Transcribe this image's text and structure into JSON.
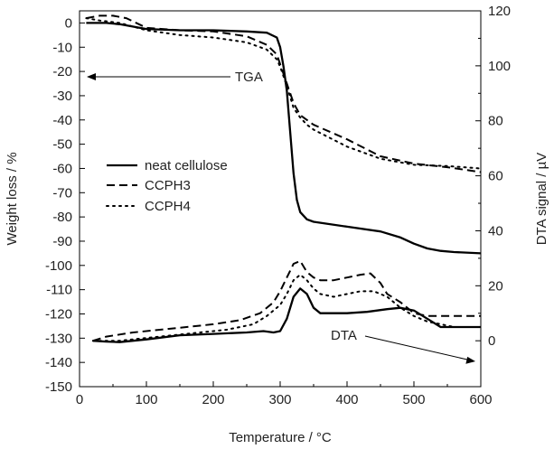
{
  "chart_data": {
    "type": "line",
    "x_axis": {
      "label": "Temperature / °C",
      "range": [
        0,
        600
      ],
      "ticks": [
        "0",
        "100",
        "200",
        "300",
        "400",
        "500",
        "600"
      ]
    },
    "y_left": {
      "label": "Weight loss / %",
      "range": [
        -150,
        5
      ],
      "ticks": [
        "0",
        "-10",
        "-20",
        "-30",
        "-40",
        "-50",
        "-60",
        "-70",
        "-80",
        "-90",
        "-100",
        "-110",
        "-120",
        "-130",
        "-140",
        "-150"
      ]
    },
    "y_right": {
      "label": "DTA signal / µV",
      "range": [
        -16.7,
        120
      ],
      "ticks": [
        "0",
        "20",
        "40",
        "60",
        "80",
        "100",
        "120"
      ]
    },
    "legend": {
      "position": "center-left",
      "entries": [
        {
          "name": "neat cellulose",
          "style": "solid"
        },
        {
          "name": "CCPH3",
          "style": "dashed"
        },
        {
          "name": "CCPH4",
          "style": "dotted"
        }
      ]
    },
    "annotations": [
      {
        "text": "TGA",
        "arrow_to": "left axis"
      },
      {
        "text": "DTA",
        "arrow_to": "right axis"
      }
    ],
    "series": [
      {
        "name": "neat cellulose",
        "group": "TGA",
        "axis": "left",
        "style": "solid",
        "x": [
          10,
          40,
          60,
          100,
          150,
          200,
          250,
          280,
          295,
          300,
          305,
          310,
          315,
          320,
          325,
          330,
          340,
          350,
          400,
          450,
          480,
          500,
          520,
          540,
          560,
          600
        ],
        "y": [
          0,
          0,
          -0.5,
          -2.5,
          -3,
          -3,
          -3.5,
          -4,
          -6,
          -10,
          -18,
          -28,
          -45,
          -62,
          -73,
          -78,
          -81,
          -82,
          -84,
          -86,
          -88.5,
          -91,
          -93,
          -94,
          -94.5,
          -95
        ]
      },
      {
        "name": "CCPH3",
        "group": "TGA",
        "axis": "left",
        "style": "dashed",
        "x": [
          10,
          30,
          50,
          70,
          100,
          150,
          200,
          250,
          280,
          295,
          300,
          310,
          320,
          330,
          340,
          350,
          400,
          450,
          500,
          550,
          600
        ],
        "y": [
          2,
          3,
          3,
          2,
          -2,
          -3,
          -3.5,
          -5.5,
          -9,
          -13,
          -17,
          -25,
          -33,
          -38,
          -40,
          -42,
          -48,
          -55,
          -58,
          -59.5,
          -61.5
        ]
      },
      {
        "name": "CCPH4",
        "group": "TGA",
        "axis": "left",
        "style": "dotted",
        "x": [
          10,
          30,
          60,
          100,
          150,
          200,
          250,
          280,
          295,
          300,
          310,
          320,
          330,
          340,
          350,
          400,
          450,
          500,
          550,
          600
        ],
        "y": [
          2,
          1,
          0,
          -3,
          -5,
          -6,
          -8,
          -11,
          -15,
          -18,
          -26,
          -35,
          -39,
          -42,
          -44,
          -51,
          -56,
          -58.5,
          -59,
          -60
        ]
      },
      {
        "name": "neat cellulose",
        "group": "DTA",
        "axis": "right",
        "style": "solid",
        "x": [
          20,
          40,
          60,
          80,
          100,
          150,
          200,
          250,
          275,
          290,
          300,
          310,
          320,
          330,
          340,
          350,
          360,
          380,
          400,
          430,
          460,
          480,
          500,
          520,
          540,
          560,
          600
        ],
        "y": [
          0,
          -0.3,
          -0.5,
          0,
          0.5,
          2,
          2.5,
          3,
          3.5,
          3,
          3.5,
          8,
          16,
          19,
          17,
          12,
          10,
          10,
          10,
          10.5,
          11.5,
          12,
          11,
          8,
          5,
          5,
          5
        ]
      },
      {
        "name": "CCPH3",
        "group": "DTA",
        "axis": "right",
        "style": "dashed",
        "x": [
          20,
          40,
          80,
          120,
          160,
          200,
          240,
          270,
          290,
          300,
          310,
          320,
          330,
          340,
          350,
          360,
          380,
          400,
          420,
          435,
          450,
          460,
          480,
          500,
          520,
          560,
          600
        ],
        "y": [
          0,
          1.5,
          3,
          4,
          5,
          6,
          7.5,
          10,
          14,
          18,
          23,
          28,
          29,
          25,
          23,
          22,
          22,
          23,
          24,
          24.5,
          21,
          17,
          14,
          10,
          9,
          9,
          9
        ]
      },
      {
        "name": "CCPH4",
        "group": "DTA",
        "axis": "right",
        "style": "dotted",
        "x": [
          20,
          60,
          100,
          140,
          180,
          220,
          260,
          280,
          300,
          310,
          320,
          330,
          340,
          350,
          360,
          380,
          400,
          420,
          440,
          460,
          480,
          500,
          520,
          540,
          560,
          600
        ],
        "y": [
          0,
          0,
          1,
          2,
          3,
          4,
          6,
          9,
          13,
          17,
          22,
          24,
          22,
          19,
          17,
          16,
          17,
          18,
          18,
          16,
          12,
          9,
          7,
          6,
          5,
          5
        ]
      }
    ]
  }
}
